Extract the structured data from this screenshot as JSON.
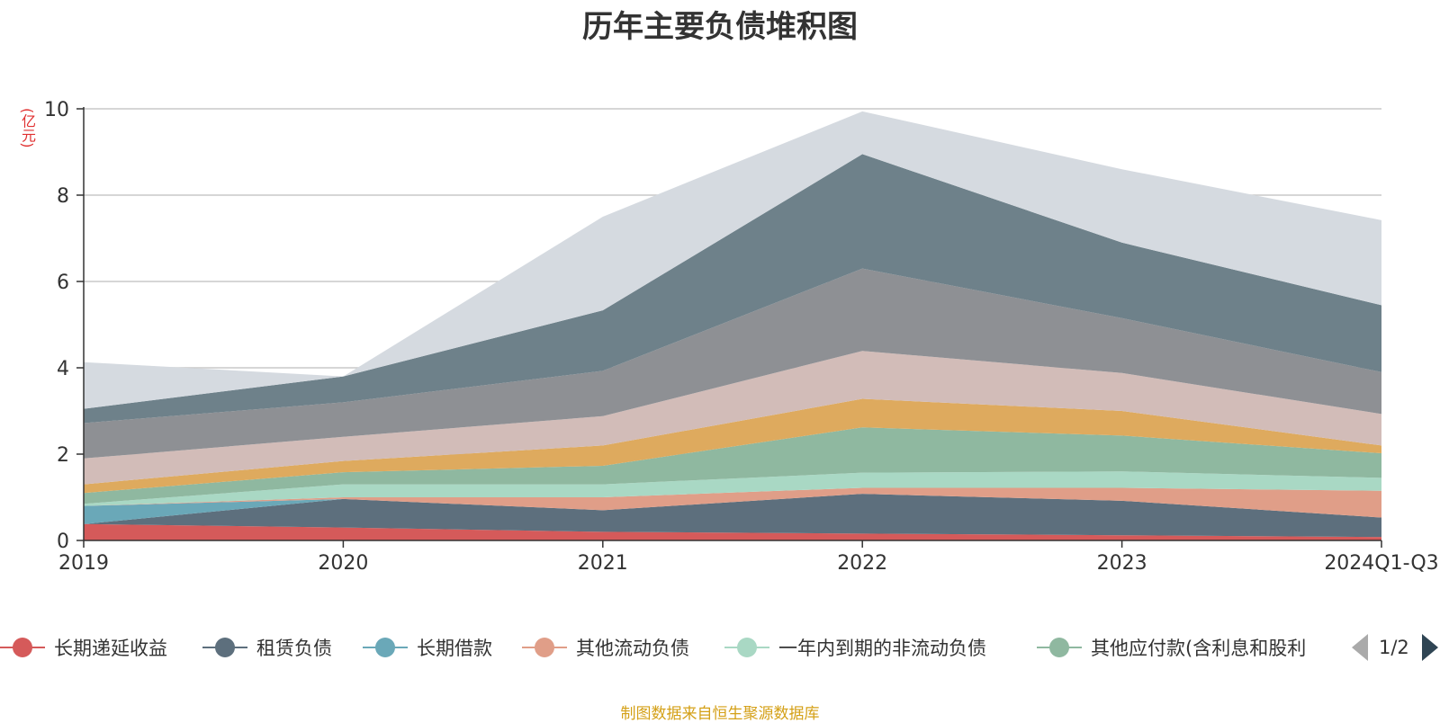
{
  "title": "历年主要负债堆积图",
  "unit_label": "(亿元)",
  "source_note": "制图数据来自恒生聚源数据库",
  "legend_pager": "1/2",
  "chart_data": {
    "type": "area",
    "stacked": true,
    "categories": [
      "2019",
      "2020",
      "2021",
      "2022",
      "2023",
      "2024Q1-Q3"
    ],
    "ylim": [
      0,
      10
    ],
    "yticks": [
      0,
      2,
      4,
      6,
      8,
      10
    ],
    "grid": true,
    "legend_position": "bottom",
    "series": [
      {
        "name": "长期递延收益",
        "color": "#d55a5a",
        "values": [
          0.38,
          0.3,
          0.2,
          0.16,
          0.12,
          0.08
        ],
        "in_legend": true
      },
      {
        "name": "租赁负债",
        "color": "#5d6f7d",
        "values": [
          0.0,
          0.66,
          0.5,
          0.92,
          0.8,
          0.45
        ],
        "in_legend": true
      },
      {
        "name": "长期借款",
        "color": "#6aa8b8",
        "values": [
          0.42,
          0.0,
          0.0,
          0.0,
          0.0,
          0.0
        ],
        "in_legend": true
      },
      {
        "name": "其他流动负债",
        "color": "#e09e88",
        "values": [
          0.0,
          0.04,
          0.3,
          0.14,
          0.3,
          0.62
        ],
        "in_legend": true
      },
      {
        "name": "一年内到期的非流动负债",
        "color": "#a9d8c4",
        "values": [
          0.05,
          0.3,
          0.3,
          0.35,
          0.38,
          0.3
        ],
        "in_legend": true
      },
      {
        "name": "其他应付款(含利息和股利",
        "color": "#8fb8a0",
        "values": [
          0.25,
          0.28,
          0.43,
          1.05,
          0.83,
          0.57
        ],
        "in_legend": true
      },
      {
        "name": "",
        "color": "#deaa5e",
        "values": [
          0.2,
          0.26,
          0.47,
          0.66,
          0.57,
          0.18
        ],
        "in_legend": false
      },
      {
        "name": "",
        "color": "#d2bcb8",
        "values": [
          0.6,
          0.56,
          0.68,
          1.11,
          0.88,
          0.73
        ],
        "in_legend": false
      },
      {
        "name": "",
        "color": "#8e9094",
        "values": [
          0.82,
          0.8,
          1.05,
          1.91,
          1.27,
          0.97
        ],
        "in_legend": false
      },
      {
        "name": "",
        "color": "#6e818a",
        "values": [
          0.33,
          0.6,
          1.4,
          2.65,
          1.75,
          1.55
        ],
        "in_legend": false
      },
      {
        "name": "",
        "color": "#d5dae0",
        "values": [
          1.08,
          0.0,
          2.17,
          0.99,
          1.7,
          1.97
        ],
        "in_legend": false
      }
    ]
  }
}
